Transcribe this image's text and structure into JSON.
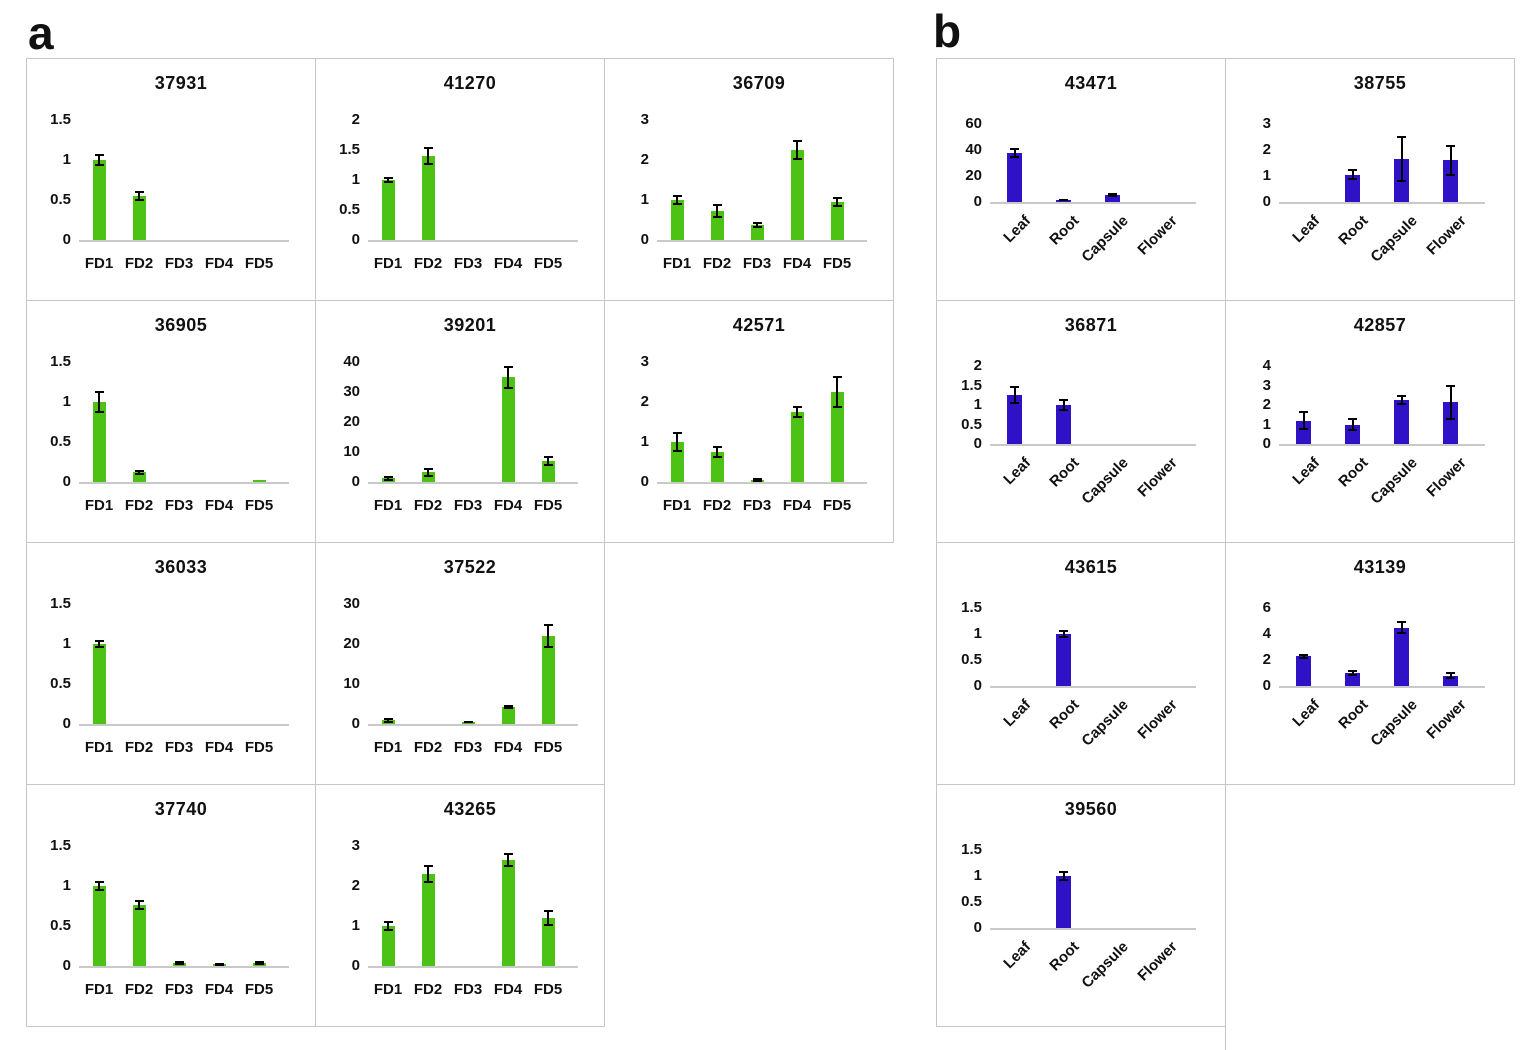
{
  "figure": {
    "panel_a_label": "a",
    "panel_b_label": "b"
  },
  "colors": {
    "green_bar": "#4cc214",
    "blue_bar": "#2f11c6",
    "cell_border": "#c6c6c6",
    "baseline": "#c9c9c9",
    "error_bar": "#000000",
    "text": "#111111"
  },
  "chart_data": [
    {
      "panel": "a",
      "row": 0,
      "col": 0,
      "type": "bar",
      "title": "37931",
      "categories": [
        "FD1",
        "FD2",
        "FD3",
        "FD4",
        "FD5"
      ],
      "values": [
        1.0,
        0.55,
        0,
        0,
        0
      ],
      "errors": [
        0.06,
        0.05,
        0,
        0,
        0
      ],
      "yticks": [
        0,
        0.5,
        1,
        1.5
      ],
      "ylim": [
        0,
        1.5
      ],
      "grid": false
    },
    {
      "panel": "a",
      "row": 0,
      "col": 1,
      "type": "bar",
      "title": "41270",
      "categories": [
        "FD1",
        "FD2",
        "FD3",
        "FD4",
        "FD5"
      ],
      "values": [
        1.0,
        1.4,
        0,
        0,
        0
      ],
      "errors": [
        0.04,
        0.13,
        0,
        0,
        0
      ],
      "yticks": [
        0,
        0.5,
        1,
        1.5,
        2
      ],
      "ylim": [
        0,
        2
      ],
      "grid": false
    },
    {
      "panel": "a",
      "row": 0,
      "col": 2,
      "type": "bar",
      "title": "36709",
      "categories": [
        "FD1",
        "FD2",
        "FD3",
        "FD4",
        "FD5"
      ],
      "values": [
        1.0,
        0.72,
        0.38,
        2.25,
        0.95
      ],
      "errors": [
        0.1,
        0.15,
        0.05,
        0.22,
        0.1
      ],
      "yticks": [
        0,
        1,
        2,
        3
      ],
      "ylim": [
        0,
        3
      ],
      "grid": false
    },
    {
      "panel": "a",
      "row": 1,
      "col": 0,
      "type": "bar",
      "title": "36905",
      "categories": [
        "FD1",
        "FD2",
        "FD3",
        "FD4",
        "FD5"
      ],
      "values": [
        1.0,
        0.12,
        0,
        0,
        0.02
      ],
      "errors": [
        0.12,
        0.02,
        0,
        0,
        0
      ],
      "yticks": [
        0,
        0.5,
        1,
        1.5
      ],
      "ylim": [
        0,
        1.5
      ],
      "grid": false
    },
    {
      "panel": "a",
      "row": 1,
      "col": 1,
      "type": "bar",
      "title": "39201",
      "categories": [
        "FD1",
        "FD2",
        "FD3",
        "FD4",
        "FD5"
      ],
      "values": [
        1.2,
        3.3,
        0,
        35,
        7
      ],
      "errors": [
        0.4,
        1.2,
        0,
        3.5,
        1.3
      ],
      "yticks": [
        0,
        10,
        20,
        30,
        40
      ],
      "ylim": [
        0,
        40
      ],
      "grid": false
    },
    {
      "panel": "a",
      "row": 1,
      "col": 2,
      "type": "bar",
      "title": "42571",
      "categories": [
        "FD1",
        "FD2",
        "FD3",
        "FD4",
        "FD5"
      ],
      "values": [
        1.0,
        0.75,
        0.05,
        1.75,
        2.25
      ],
      "errors": [
        0.22,
        0.13,
        0.02,
        0.12,
        0.38
      ],
      "yticks": [
        0,
        1,
        2,
        3
      ],
      "ylim": [
        0,
        3
      ],
      "grid": false
    },
    {
      "panel": "a",
      "row": 2,
      "col": 0,
      "type": "bar",
      "title": "36033",
      "categories": [
        "FD1",
        "FD2",
        "FD3",
        "FD4",
        "FD5"
      ],
      "values": [
        1.0,
        0,
        0,
        0,
        0
      ],
      "errors": [
        0.04,
        0,
        0,
        0,
        0
      ],
      "yticks": [
        0,
        0.5,
        1,
        1.5
      ],
      "ylim": [
        0,
        1.5
      ],
      "grid": false
    },
    {
      "panel": "a",
      "row": 2,
      "col": 1,
      "type": "bar",
      "title": "37522",
      "categories": [
        "FD1",
        "FD2",
        "FD3",
        "FD4",
        "FD5"
      ],
      "values": [
        0.9,
        0,
        0.5,
        4.2,
        22
      ],
      "errors": [
        0.3,
        0,
        0.1,
        0.2,
        2.8
      ],
      "yticks": [
        0,
        10,
        20,
        30
      ],
      "ylim": [
        0,
        30
      ],
      "grid": false
    },
    {
      "panel": "a",
      "row": 3,
      "col": 0,
      "type": "bar",
      "title": "37740",
      "categories": [
        "FD1",
        "FD2",
        "FD3",
        "FD4",
        "FD5"
      ],
      "values": [
        1.0,
        0.76,
        0.04,
        0.02,
        0.04
      ],
      "errors": [
        0.05,
        0.05,
        0.012,
        0.008,
        0.012
      ],
      "yticks": [
        0,
        0.5,
        1,
        1.5
      ],
      "ylim": [
        0,
        1.5
      ],
      "grid": false
    },
    {
      "panel": "a",
      "row": 3,
      "col": 1,
      "type": "bar",
      "title": "43265",
      "categories": [
        "FD1",
        "FD2",
        "FD3",
        "FD4",
        "FD5"
      ],
      "values": [
        1.0,
        2.3,
        0,
        2.65,
        1.2
      ],
      "errors": [
        0.1,
        0.2,
        0,
        0.15,
        0.17
      ],
      "yticks": [
        0,
        1,
        2,
        3
      ],
      "ylim": [
        0,
        3
      ],
      "grid": false
    },
    {
      "panel": "b",
      "row": 0,
      "col": 0,
      "type": "bar",
      "title": "43471",
      "categories": [
        "Leaf",
        "Root",
        "Capsule",
        "Flower"
      ],
      "values": [
        38,
        1.5,
        5.5,
        0
      ],
      "errors": [
        3,
        0.3,
        1,
        0
      ],
      "yticks": [
        0,
        20,
        40,
        60
      ],
      "ylim": [
        0,
        60
      ],
      "grid": false
    },
    {
      "panel": "b",
      "row": 0,
      "col": 1,
      "type": "bar",
      "title": "38755",
      "categories": [
        "Leaf",
        "Root",
        "Capsule",
        "Flower"
      ],
      "values": [
        0,
        1.05,
        1.65,
        1.6
      ],
      "errors": [
        0,
        0.18,
        0.85,
        0.55
      ],
      "yticks": [
        0,
        1,
        2,
        3
      ],
      "ylim": [
        0,
        3
      ],
      "grid": false
    },
    {
      "panel": "b",
      "row": 1,
      "col": 0,
      "type": "bar",
      "title": "36871",
      "categories": [
        "Leaf",
        "Root",
        "Capsule",
        "Flower"
      ],
      "values": [
        1.25,
        1.0,
        0,
        0
      ],
      "errors": [
        0.2,
        0.12,
        0,
        0
      ],
      "yticks": [
        0,
        0.5,
        1,
        1.5,
        2
      ],
      "ylim": [
        0,
        2
      ],
      "grid": false
    },
    {
      "panel": "b",
      "row": 1,
      "col": 1,
      "type": "bar",
      "title": "42857",
      "categories": [
        "Leaf",
        "Root",
        "Capsule",
        "Flower"
      ],
      "values": [
        1.2,
        1.0,
        2.25,
        2.15
      ],
      "errors": [
        0.45,
        0.3,
        0.2,
        0.85
      ],
      "yticks": [
        0,
        1,
        2,
        3,
        4
      ],
      "ylim": [
        0,
        4
      ],
      "grid": false
    },
    {
      "panel": "b",
      "row": 2,
      "col": 0,
      "type": "bar",
      "title": "43615",
      "categories": [
        "Leaf",
        "Root",
        "Capsule",
        "Flower"
      ],
      "values": [
        0,
        1.0,
        0,
        0
      ],
      "errors": [
        0,
        0.05,
        0,
        0
      ],
      "yticks": [
        0,
        0.5,
        1,
        1.5
      ],
      "ylim": [
        0,
        1.5
      ],
      "grid": false
    },
    {
      "panel": "b",
      "row": 2,
      "col": 1,
      "type": "bar",
      "title": "43139",
      "categories": [
        "Leaf",
        "Root",
        "Capsule",
        "Flower"
      ],
      "values": [
        2.3,
        1.0,
        4.5,
        0.8
      ],
      "errors": [
        0.12,
        0.18,
        0.45,
        0.18
      ],
      "yticks": [
        0,
        2,
        4,
        6
      ],
      "ylim": [
        0,
        6
      ],
      "grid": false
    },
    {
      "panel": "b",
      "row": 3,
      "col": 0,
      "type": "bar",
      "title": "39560",
      "categories": [
        "Leaf",
        "Root",
        "Capsule",
        "Flower"
      ],
      "values": [
        0,
        1.0,
        0,
        0
      ],
      "errors": [
        0,
        0.08,
        0,
        0
      ],
      "yticks": [
        0,
        0.5,
        1,
        1.5
      ],
      "ylim": [
        0,
        1.5
      ],
      "grid": false
    }
  ]
}
